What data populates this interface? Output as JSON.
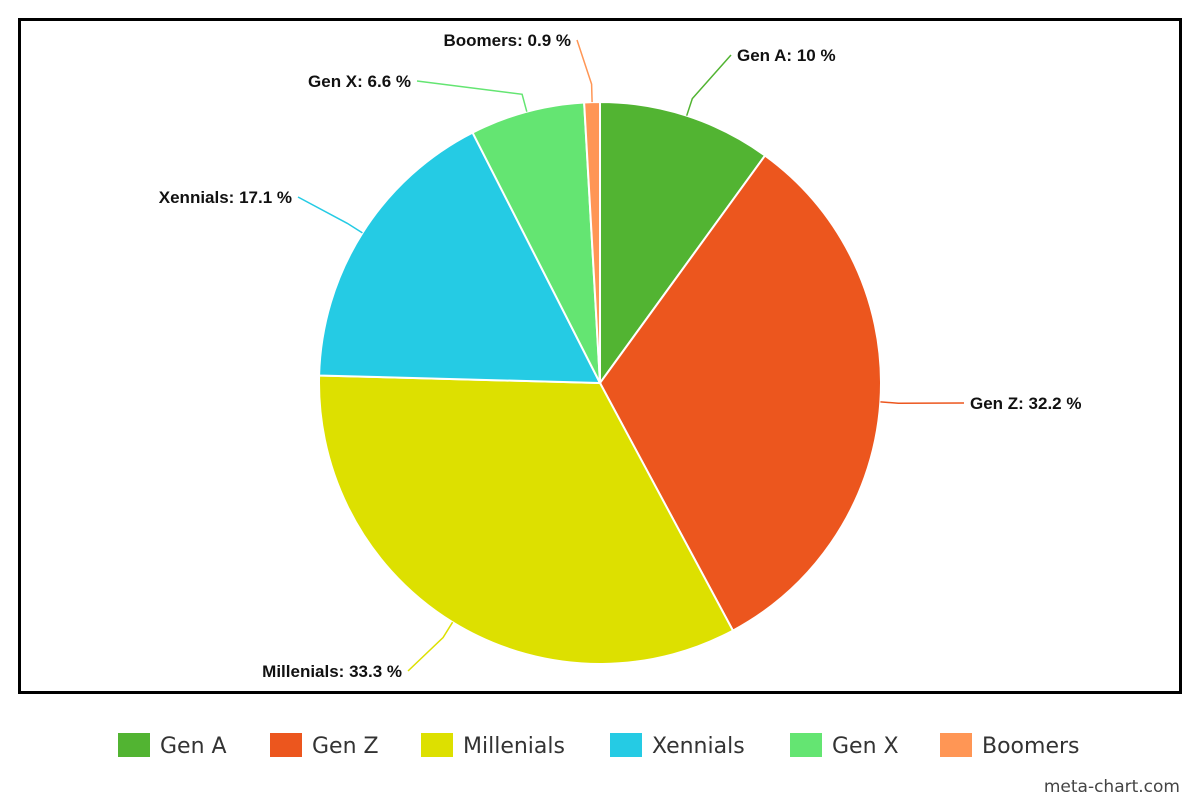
{
  "chart_data": {
    "type": "pie",
    "title": "",
    "slices": [
      {
        "name": "Gen A",
        "value": 10,
        "label": "Gen A: 10 %",
        "color": "#52b432"
      },
      {
        "name": "Gen Z",
        "value": 32.2,
        "label": "Gen Z: 32.2 %",
        "color": "#ec561e"
      },
      {
        "name": "Millenials",
        "value": 33.3,
        "label": "Millenials: 33.3 %",
        "color": "#dde000"
      },
      {
        "name": "Xennials",
        "value": 17.1,
        "label": "Xennials: 17.1 %",
        "color": "#25cbe4"
      },
      {
        "name": "Gen X",
        "value": 6.6,
        "label": "Gen X: 6.6 %",
        "color": "#64e572"
      },
      {
        "name": "Boomers",
        "value": 0.9,
        "label": "Boomers: 0.9 %",
        "color": "#ff9655"
      }
    ],
    "legend": {
      "position": "bottom",
      "entries": [
        "Gen A",
        "Gen Z",
        "Millenials",
        "Xennials",
        "Gen X",
        "Boomers"
      ]
    }
  },
  "watermark": "meta-chart.com"
}
